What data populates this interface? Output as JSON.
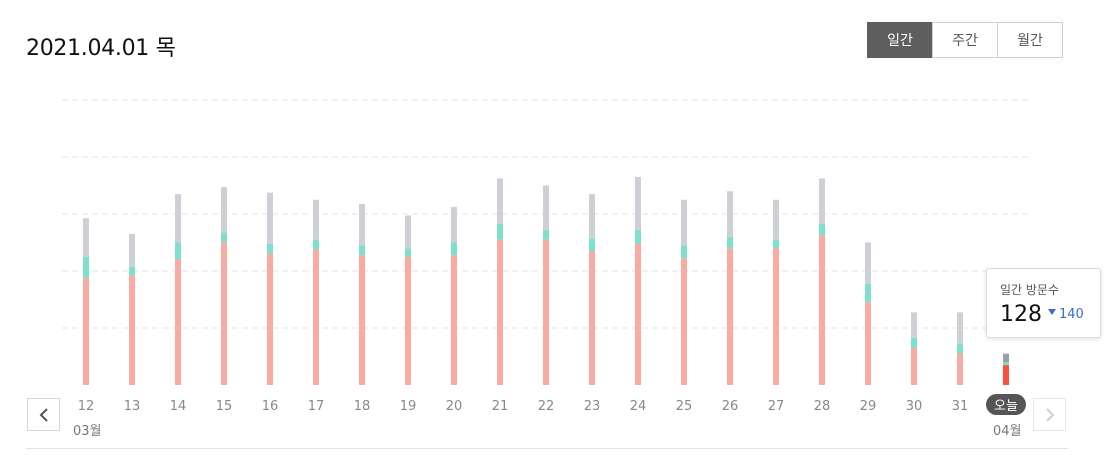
{
  "header": {
    "date_title": "2021.04.01 목"
  },
  "period_tabs": [
    {
      "label": "일간",
      "active": true
    },
    {
      "label": "주간",
      "active": false
    },
    {
      "label": "월간",
      "active": false
    }
  ],
  "tooltip": {
    "label": "일간 방문수",
    "value": "128",
    "change": "140"
  },
  "months": {
    "start": "03월",
    "end": "04월"
  },
  "chart_data": {
    "type": "bar",
    "stacked": true,
    "categories": [
      "12",
      "13",
      "14",
      "15",
      "16",
      "17",
      "18",
      "19",
      "20",
      "21",
      "22",
      "23",
      "24",
      "25",
      "26",
      "27",
      "28",
      "29",
      "30",
      "31",
      "오늘"
    ],
    "ylim": [
      0,
      100
    ],
    "grid": true,
    "series": [
      {
        "color": "#f9aba1",
        "highlight_color": "#f9533f",
        "values": [
          37.5,
          38.5,
          44,
          50,
          46,
          47.5,
          45.5,
          45,
          45.5,
          51,
          51,
          47,
          49.5,
          44.5,
          48,
          48,
          52.5,
          29,
          13,
          11,
          7
        ]
      },
      {
        "color": "#7ee0cc",
        "values": [
          7.5,
          3,
          6,
          3.5,
          3.5,
          3.5,
          3.5,
          3,
          4.5,
          5.5,
          3.5,
          4.5,
          5,
          4.5,
          4,
          3,
          4,
          6.5,
          3.5,
          3.5,
          1
        ]
      },
      {
        "color": "#cdd1d6",
        "values": [
          13.5,
          11.5,
          17,
          16,
          18,
          14,
          14.5,
          11.5,
          12.5,
          16,
          15.5,
          15.5,
          18.5,
          16,
          16,
          14,
          16,
          14.5,
          9,
          11,
          3
        ]
      }
    ],
    "highlight_index": 20,
    "highlight_label": "오늘"
  }
}
